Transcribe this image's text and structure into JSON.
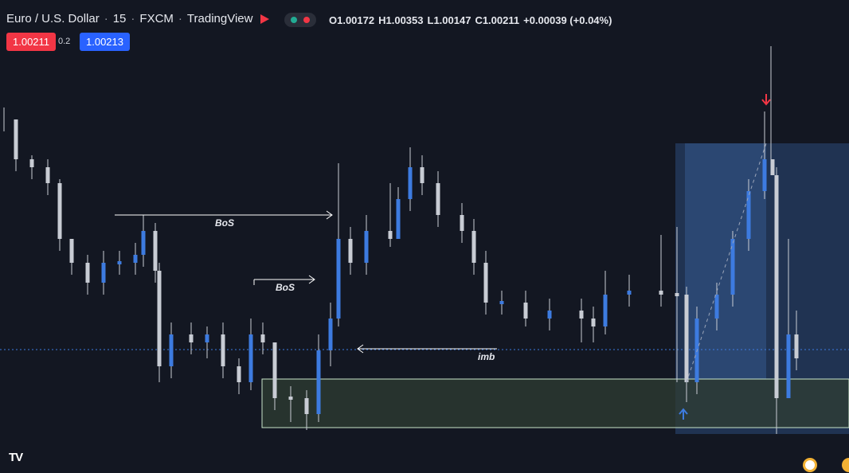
{
  "header": {
    "symbol": "Euro / U.S. Dollar",
    "interval": "15",
    "exchange": "FXCM",
    "source": "TradingView",
    "open": "O1.00172",
    "high": "H1.00353",
    "low": "L1.00147",
    "close": "C1.00211",
    "change": "+0.00039 (+0.04%)"
  },
  "quote": {
    "sell": "1.00211",
    "spread": "0.2",
    "buy": "1.00213"
  },
  "annotations": [
    "BoS",
    "BoS",
    "imb"
  ],
  "logo": "TV"
}
